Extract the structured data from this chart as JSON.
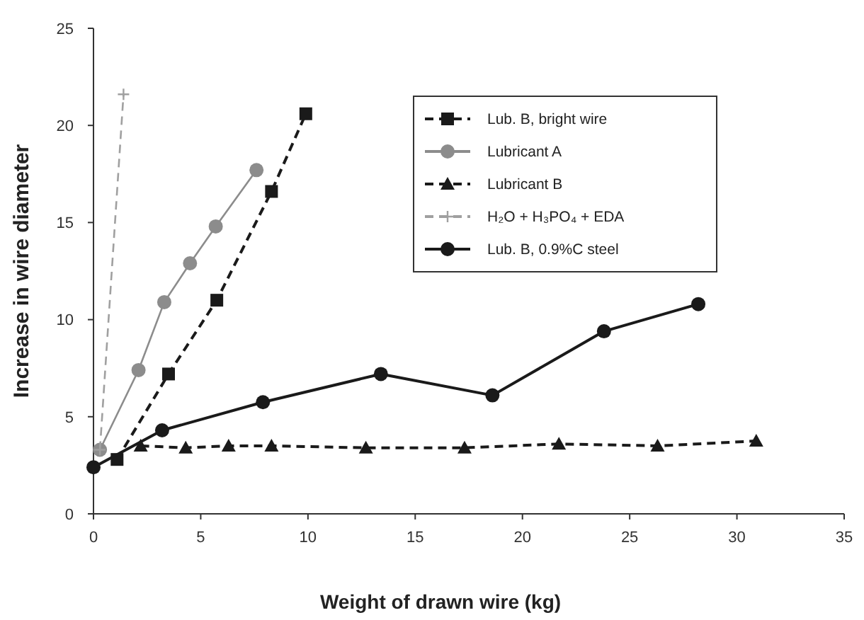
{
  "chart_data": {
    "type": "line",
    "xlabel": "Weight of drawn wire (kg)",
    "ylabel": "Increase in wire diameter",
    "xlim": [
      0,
      35
    ],
    "ylim": [
      0,
      25
    ],
    "xticks": [
      0,
      5,
      10,
      15,
      20,
      25,
      30,
      35
    ],
    "yticks": [
      0,
      5,
      10,
      15,
      20,
      25
    ],
    "grid": false,
    "legend": "top right",
    "series": [
      {
        "name": "Lub. B, bright wire",
        "color": "#1a1a1a",
        "marker": "square",
        "line_style": "dashed",
        "x": [
          1.1,
          3.5,
          5.75,
          8.3,
          9.9
        ],
        "values": [
          2.8,
          7.2,
          11.0,
          16.6,
          20.6
        ]
      },
      {
        "name": "Lubricant A",
        "color": "#8c8c8c",
        "marker": "circle",
        "line_style": "solid",
        "x": [
          0.3,
          2.1,
          3.3,
          4.5,
          5.7,
          7.6
        ],
        "values": [
          3.3,
          7.4,
          10.9,
          12.9,
          14.8,
          17.7
        ]
      },
      {
        "name": "Lubricant B",
        "color": "#1a1a1a",
        "marker": "triangle",
        "line_style": "dashed",
        "x": [
          2.2,
          4.3,
          6.3,
          8.3,
          12.7,
          17.3,
          21.7,
          26.3,
          30.9
        ],
        "values": [
          3.5,
          3.4,
          3.5,
          3.5,
          3.4,
          3.4,
          3.6,
          3.5,
          3.75
        ]
      },
      {
        "name": "H₂O + H₃PO₄ + EDA",
        "color": "#a0a0a0",
        "marker": "cross",
        "line_style": "dashed",
        "x": [
          0.3,
          1.4
        ],
        "values": [
          3.3,
          21.6
        ]
      },
      {
        "name": "Lub. B, 0.9%C steel",
        "color": "#1a1a1a",
        "marker": "circle",
        "line_style": "solid",
        "x": [
          0,
          3.2,
          7.9,
          13.4,
          18.6,
          23.8,
          28.2
        ],
        "values": [
          2.4,
          4.3,
          5.75,
          7.2,
          6.1,
          9.4,
          10.8
        ]
      }
    ]
  }
}
